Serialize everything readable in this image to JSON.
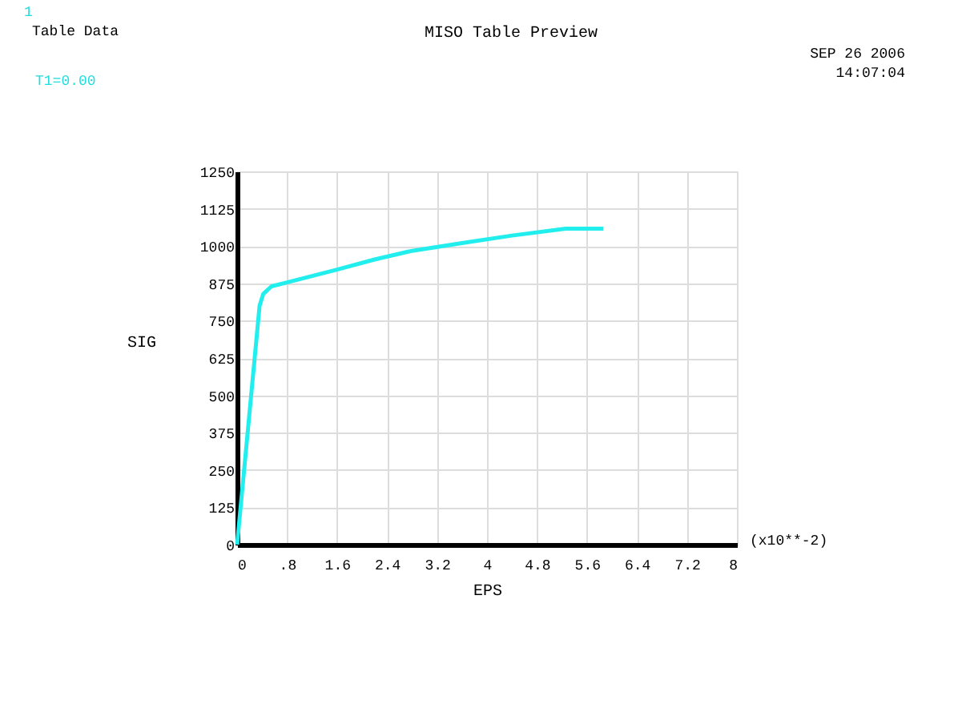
{
  "chart_data": {
    "type": "line",
    "title": "MISO Table Preview",
    "xlabel": "EPS",
    "ylabel": "SIG",
    "annotations": [
      "1",
      "Table Data",
      "T1=0.00",
      "SEP 26 2006",
      "14:07:04",
      "(x10**-2)"
    ],
    "series": [
      {
        "color": "#22eeee",
        "x": [
          0,
          0.36,
          0.42,
          0.55,
          0.8,
          1.6,
          2.2,
          2.8,
          3.6,
          4.4,
          5.26,
          5.86
        ],
        "values": [
          0,
          800,
          840,
          865,
          878,
          921,
          955,
          984,
          1010,
          1035,
          1058,
          1058
        ]
      }
    ],
    "xlim": [
      0,
      8
    ],
    "ylim": [
      0,
      1250
    ],
    "xticks": [
      0,
      {
        "value": 0.8,
        "label": ".8"
      },
      1.6,
      2.4,
      3.2,
      4,
      4.8,
      5.6,
      6.4,
      7.2,
      8
    ],
    "yticks": [
      0,
      125,
      250,
      375,
      500,
      625,
      750,
      875,
      1000,
      1125,
      1250
    ],
    "grid": true,
    "marker": "none",
    "line_style": "solid"
  }
}
